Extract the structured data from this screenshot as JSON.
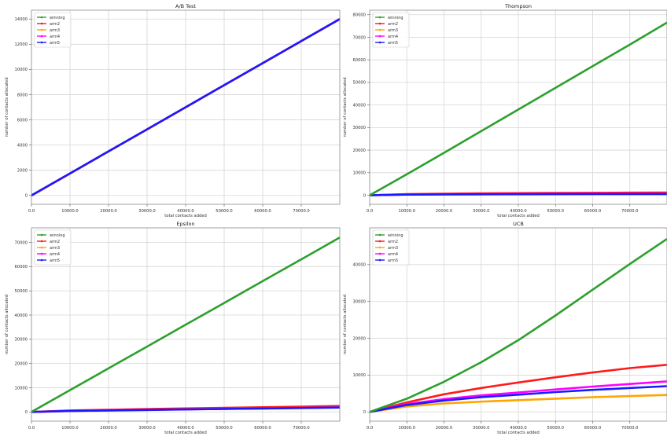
{
  "series_colors": {
    "winning": "#2ca02c",
    "arm2": "#ff1a1a",
    "arm3": "#ffa500",
    "arm4": "#ff00ff",
    "arm5": "#1a1aff"
  },
  "chart_data": [
    {
      "type": "line",
      "title": "A/B Test",
      "xlabel": "total contacts added",
      "ylabel": "number of contacts allocated",
      "xlim": [
        0,
        80000
      ],
      "ylim": [
        -700,
        14700
      ],
      "xticks": [
        0,
        10000,
        20000,
        30000,
        40000,
        50000,
        60000,
        70000
      ],
      "xtick_labels": [
        "0.0",
        "10000.0",
        "20000.0",
        "30000.0",
        "40000.0",
        "50000.0",
        "60000.0",
        "70000.0"
      ],
      "yticks": [
        0,
        2000,
        4000,
        6000,
        8000,
        10000,
        12000,
        14000
      ],
      "ytick_labels": [
        "0",
        "2000",
        "4000",
        "6000",
        "8000",
        "10000",
        "12000",
        "14000"
      ],
      "legend": "top-left",
      "grid": true,
      "x": [
        0,
        10000,
        20000,
        30000,
        40000,
        50000,
        60000,
        70000,
        80000
      ],
      "series": [
        {
          "name": "winning",
          "values": [
            0,
            1750,
            3500,
            5250,
            7000,
            8750,
            10500,
            12250,
            14000
          ]
        },
        {
          "name": "arm2",
          "values": [
            0,
            1750,
            3500,
            5250,
            7000,
            8750,
            10500,
            12250,
            14000
          ]
        },
        {
          "name": "arm3",
          "values": [
            0,
            1750,
            3500,
            5250,
            7000,
            8750,
            10500,
            12250,
            14000
          ]
        },
        {
          "name": "arm4",
          "values": [
            0,
            1750,
            3500,
            5250,
            7000,
            8750,
            10500,
            12250,
            14000
          ]
        },
        {
          "name": "arm5",
          "values": [
            0,
            1750,
            3500,
            5250,
            7000,
            8750,
            10500,
            12250,
            14000
          ]
        }
      ]
    },
    {
      "type": "line",
      "title": "Thompson",
      "xlabel": "total contacts added",
      "ylabel": "number of contacts allocated",
      "xlim": [
        0,
        80000
      ],
      "ylim": [
        -4000,
        82000
      ],
      "xticks": [
        0,
        10000,
        20000,
        30000,
        40000,
        50000,
        60000,
        70000
      ],
      "xtick_labels": [
        "0.0",
        "10000.0",
        "20000.0",
        "30000.0",
        "40000.0",
        "50000.0",
        "60000.0",
        "70000.0"
      ],
      "yticks": [
        0,
        10000,
        20000,
        30000,
        40000,
        50000,
        60000,
        70000,
        80000
      ],
      "ytick_labels": [
        "0",
        "10000",
        "20000",
        "30000",
        "40000",
        "50000",
        "60000",
        "70000",
        "80000"
      ],
      "legend": "top-left",
      "grid": true,
      "x": [
        0,
        10000,
        20000,
        30000,
        40000,
        50000,
        60000,
        70000,
        80000
      ],
      "series": [
        {
          "name": "winning",
          "values": [
            0,
            9300,
            18800,
            28400,
            38000,
            47600,
            57200,
            66800,
            76500
          ]
        },
        {
          "name": "arm2",
          "values": [
            0,
            500,
            700,
            850,
            950,
            1050,
            1100,
            1150,
            1200
          ]
        },
        {
          "name": "arm3",
          "values": [
            0,
            300,
            400,
            450,
            500,
            520,
            540,
            560,
            580
          ]
        },
        {
          "name": "arm4",
          "values": [
            0,
            350,
            450,
            520,
            580,
            620,
            650,
            680,
            700
          ]
        },
        {
          "name": "arm5",
          "values": [
            0,
            300,
            380,
            430,
            470,
            500,
            520,
            540,
            560
          ]
        }
      ]
    },
    {
      "type": "line",
      "title": "Epsilon",
      "xlabel": "total contacts added",
      "ylabel": "number of contacts allocated",
      "xlim": [
        0,
        80000
      ],
      "ylim": [
        -3800,
        76000
      ],
      "xticks": [
        0,
        10000,
        20000,
        30000,
        40000,
        50000,
        60000,
        70000
      ],
      "xtick_labels": [
        "0.0",
        "10000.0",
        "20000.0",
        "30000.0",
        "40000.0",
        "50000.0",
        "60000.0",
        "70000.0"
      ],
      "yticks": [
        0,
        10000,
        20000,
        30000,
        40000,
        50000,
        60000,
        70000
      ],
      "ytick_labels": [
        "0",
        "10000",
        "20000",
        "30000",
        "40000",
        "50000",
        "60000",
        "70000"
      ],
      "legend": "top-left",
      "grid": true,
      "x": [
        0,
        10000,
        20000,
        30000,
        40000,
        50000,
        60000,
        70000,
        80000
      ],
      "series": [
        {
          "name": "winning",
          "values": [
            0,
            9000,
            18000,
            27000,
            36000,
            45000,
            54000,
            63000,
            72000
          ]
        },
        {
          "name": "arm2",
          "values": [
            0,
            600,
            900,
            1200,
            1450,
            1700,
            1950,
            2200,
            2450
          ]
        },
        {
          "name": "arm3",
          "values": [
            0,
            400,
            650,
            850,
            1050,
            1250,
            1450,
            1650,
            1850
          ]
        },
        {
          "name": "arm4",
          "values": [
            0,
            450,
            700,
            900,
            1100,
            1300,
            1500,
            1700,
            1900
          ]
        },
        {
          "name": "arm5",
          "values": [
            0,
            400,
            620,
            820,
            1020,
            1220,
            1420,
            1620,
            1820
          ]
        }
      ]
    },
    {
      "type": "line",
      "title": "UCB",
      "xlabel": "total contacts added",
      "ylabel": "number of contacts allocated",
      "xlim": [
        0,
        80000
      ],
      "ylim": [
        -2500,
        50000
      ],
      "xticks": [
        0,
        10000,
        20000,
        30000,
        40000,
        50000,
        60000,
        70000
      ],
      "xtick_labels": [
        "0.0",
        "10000.0",
        "20000.0",
        "30000.0",
        "40000.0",
        "50000.0",
        "60000.0",
        "70000.0"
      ],
      "yticks": [
        0,
        10000,
        20000,
        30000,
        40000
      ],
      "ytick_labels": [
        "0",
        "10000",
        "20000",
        "30000",
        "40000"
      ],
      "legend": "top-left",
      "grid": true,
      "x": [
        0,
        10000,
        20000,
        30000,
        40000,
        50000,
        60000,
        70000,
        80000
      ],
      "series": [
        {
          "name": "winning",
          "values": [
            0,
            3600,
            8200,
            13500,
            19500,
            26200,
            33200,
            40200,
            47000
          ]
        },
        {
          "name": "arm2",
          "values": [
            0,
            2600,
            4800,
            6500,
            8000,
            9400,
            10700,
            11900,
            12800
          ]
        },
        {
          "name": "arm3",
          "values": [
            0,
            1500,
            2300,
            2800,
            3200,
            3600,
            4000,
            4300,
            4600
          ]
        },
        {
          "name": "arm4",
          "values": [
            0,
            2100,
            3500,
            4500,
            5300,
            6100,
            6900,
            7600,
            8300
          ]
        },
        {
          "name": "arm5",
          "values": [
            0,
            1900,
            3100,
            4000,
            4700,
            5400,
            6000,
            6500,
            7000
          ]
        }
      ]
    }
  ]
}
